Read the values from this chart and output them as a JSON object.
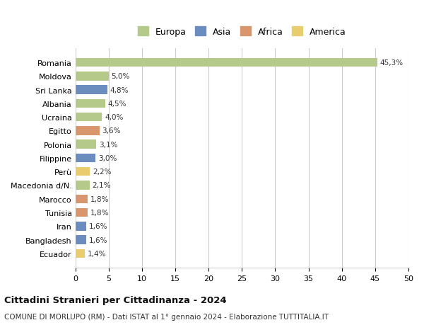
{
  "countries": [
    "Romania",
    "Moldova",
    "Sri Lanka",
    "Albania",
    "Ucraina",
    "Egitto",
    "Polonia",
    "Filippine",
    "Perù",
    "Macedonia d/N.",
    "Marocco",
    "Tunisia",
    "Iran",
    "Bangladesh",
    "Ecuador"
  ],
  "values": [
    45.3,
    5.0,
    4.8,
    4.5,
    4.0,
    3.6,
    3.1,
    3.0,
    2.2,
    2.1,
    1.8,
    1.8,
    1.6,
    1.6,
    1.4
  ],
  "continents": [
    "Europa",
    "Europa",
    "Asia",
    "Europa",
    "Europa",
    "Africa",
    "Europa",
    "Asia",
    "America",
    "Europa",
    "Africa",
    "Africa",
    "Asia",
    "Asia",
    "America"
  ],
  "continent_colors": {
    "Europa": "#b5c98a",
    "Asia": "#6b8cbf",
    "Africa": "#d9956c",
    "America": "#e8cc6e"
  },
  "legend_order": [
    "Europa",
    "Asia",
    "Africa",
    "America"
  ],
  "title": "Cittadini Stranieri per Cittadinanza - 2024",
  "subtitle": "COMUNE DI MORLUPO (RM) - Dati ISTAT al 1° gennaio 2024 - Elaborazione TUTTITALIA.IT",
  "xlabel_ticks": [
    0,
    5,
    10,
    15,
    20,
    25,
    30,
    35,
    40,
    45,
    50
  ],
  "xlim": [
    0,
    50
  ],
  "background_color": "#ffffff",
  "grid_color": "#cccccc",
  "bar_height": 0.65
}
